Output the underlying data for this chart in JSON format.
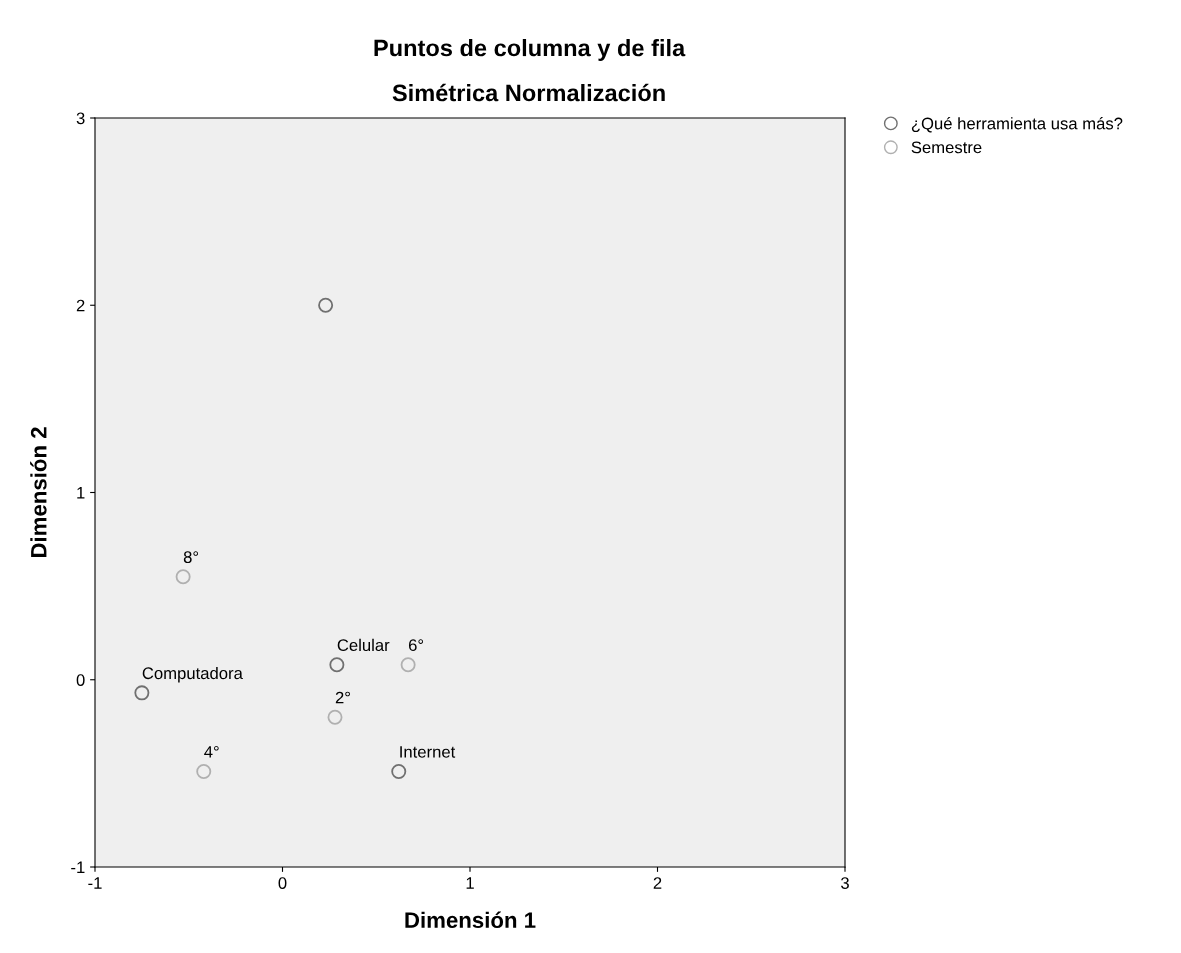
{
  "chart_data": {
    "type": "scatter",
    "title": "Puntos de columna y de fila",
    "subtitle": "Simétrica Normalización",
    "xlabel": "Dimensión 1",
    "ylabel": "Dimensión 2",
    "series": [
      {
        "name": "¿Qué herramienta usa más?",
        "color": "#707070",
        "x": [
          0.23,
          0.29,
          -0.75,
          0.62
        ],
        "values": [
          2.0,
          0.08,
          -0.07,
          -0.49
        ]
      },
      {
        "name": "Semestre",
        "color": "#b0b0b0",
        "x": [
          -0.53,
          0.67,
          0.28,
          -0.42
        ],
        "values": [
          0.55,
          0.08,
          -0.2,
          -0.49
        ]
      }
    ],
    "annotations": [
      {
        "text": "Celular",
        "x": 0.29,
        "y": 0.08
      },
      {
        "text": "Computadora",
        "x": -0.75,
        "y": -0.07
      },
      {
        "text": "Internet",
        "x": 0.62,
        "y": -0.49
      },
      {
        "text": "8°",
        "x": -0.53,
        "y": 0.55
      },
      {
        "text": "6°",
        "x": 0.67,
        "y": 0.08
      },
      {
        "text": "2°",
        "x": 0.28,
        "y": -0.2
      },
      {
        "text": "4°",
        "x": -0.42,
        "y": -0.49
      }
    ],
    "xlim": [
      -1,
      3
    ],
    "ylim": [
      -1,
      3
    ],
    "xticks": [
      -1,
      0,
      1,
      2,
      3
    ],
    "yticks": [
      -1,
      0,
      1,
      2,
      3
    ],
    "marker": "circle",
    "grid": false,
    "legend": "top right"
  }
}
